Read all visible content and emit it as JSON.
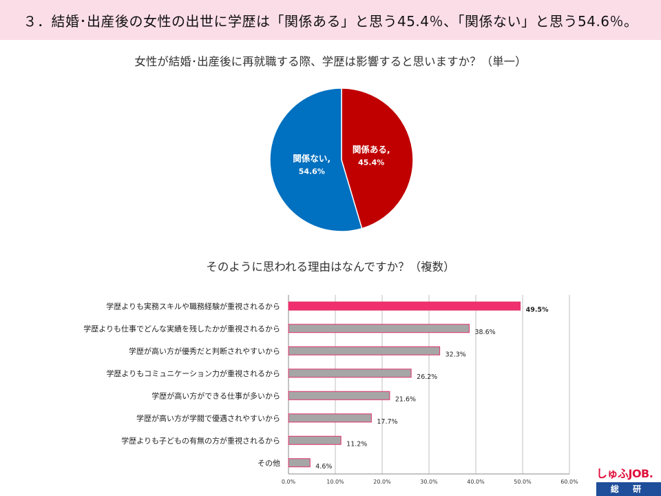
{
  "header": {
    "title": "３．結婚･出産後の女性の出世に学歴は「関係ある」と思う45.4％、「関係ない」と思う54.6％。"
  },
  "pie_question": "女性が結婚･出産後に再就職する際、学歴は影響すると思いますか？（単一）",
  "bar_question": "そのように思われる理由はなんですか？（複数）",
  "colors": {
    "header_bg": "#fbdde8",
    "pie_relevant": "#c00000",
    "pie_not_relevant": "#0070c0",
    "bar_highlight": "#f0306e",
    "bar_default": "#a6a6a6",
    "bar_outline": "#e0306a"
  },
  "logo": {
    "top": "しゅふJOB.",
    "bottom": "総 研"
  },
  "chart_data": [
    {
      "type": "pie",
      "title": "女性が結婚･出産後に再就職する際、学歴は影響すると思いますか？（単一）",
      "slices": [
        {
          "label": "関係ある,",
          "value": 45.4,
          "value_label": "45.4%"
        },
        {
          "label": "関係ない,",
          "value": 54.6,
          "value_label": "54.6%"
        }
      ]
    },
    {
      "type": "bar",
      "orientation": "horizontal",
      "title": "そのように思われる理由はなんですか？（複数）",
      "categories": [
        "学歴よりも実務スキルや職務経験が重視されるから",
        "学歴よりも仕事でどんな実績を残したかが重視されるから",
        "学歴が高い方が優秀だと判断されやすいから",
        "学歴よりもコミュニケーション力が重視されるから",
        "学歴が高い方ができる仕事が多いから",
        "学歴が高い方が学閥で優遇されやすいから",
        "学歴よりも子どもの有無の方が重視されるから",
        "その他"
      ],
      "values": [
        49.5,
        38.6,
        32.3,
        26.2,
        21.6,
        17.7,
        11.2,
        4.6
      ],
      "value_labels": [
        "49.5%",
        "38.6%",
        "32.3%",
        "26.2%",
        "21.6%",
        "17.7%",
        "11.2%",
        "4.6%"
      ],
      "xlim": [
        0,
        60
      ],
      "ticks": [
        0,
        10,
        20,
        30,
        40,
        50,
        60
      ],
      "tick_labels": [
        "0.0%",
        "10.0%",
        "20.0%",
        "30.0%",
        "40.0%",
        "50.0%",
        "60.0%"
      ],
      "grid": true,
      "highlight_index": 0
    }
  ]
}
